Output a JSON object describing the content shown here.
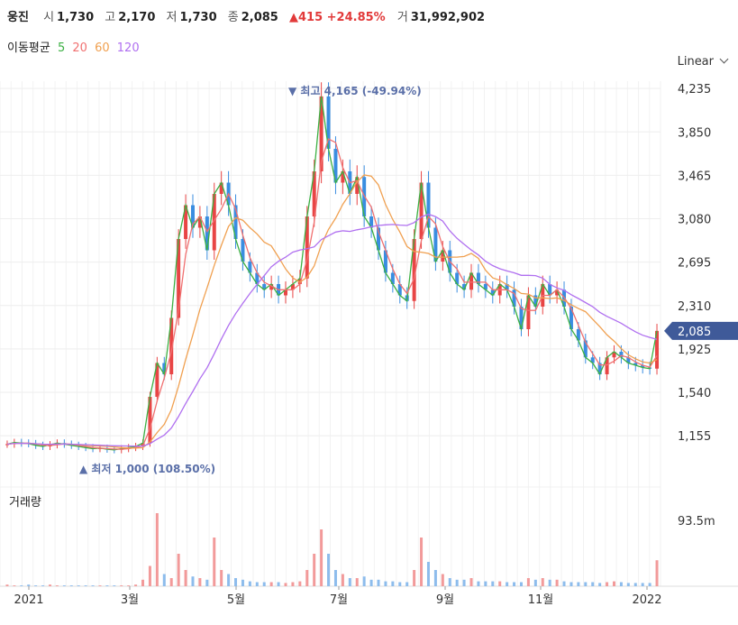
{
  "header": {
    "name": "웅진",
    "open_label": "시",
    "open": "1,730",
    "high_label": "고",
    "high": "2,170",
    "low_label": "저",
    "low": "1,730",
    "close_label": "종",
    "close": "2,085",
    "change": "▲415 +24.85%",
    "volume_label": "거",
    "volume": "31,992,902"
  },
  "ma_legend": {
    "title": "이동평균",
    "periods": [
      "5",
      "20",
      "60",
      "120"
    ],
    "colors": [
      "#3cb043",
      "#f07070",
      "#f0a050",
      "#b070f0"
    ]
  },
  "scale_mode": "Linear",
  "volume_title": "거래량",
  "chart_data": {
    "type": "candlestick",
    "price_axis": {
      "ticks": [
        "4,235",
        "3,850",
        "3,465",
        "3,080",
        "2,695",
        "2,310",
        "1,925",
        "1,540",
        "1,155"
      ],
      "min": 900,
      "max": 4300
    },
    "volume_axis": {
      "ticks": [
        "93.5m"
      ]
    },
    "x_ticks": [
      "2021",
      "3월",
      "5월",
      "7월",
      "9월",
      "11월",
      "2022"
    ],
    "current_price": {
      "label": "2,085",
      "value": 2085
    },
    "annotations": [
      {
        "text": "▼ 최고 4,165 (-49.94%)",
        "value": 4165
      },
      {
        "text": "▲ 최저 1,000 (108.50%)",
        "value": 1000
      }
    ],
    "close_series": [
      1080,
      1095,
      1090,
      1085,
      1070,
      1060,
      1075,
      1090,
      1080,
      1070,
      1060,
      1050,
      1040,
      1045,
      1035,
      1030,
      1040,
      1050,
      1060,
      1090,
      1500,
      1800,
      1700,
      2200,
      2900,
      3200,
      3000,
      3100,
      2800,
      3300,
      3400,
      3200,
      2900,
      2700,
      2600,
      2500,
      2450,
      2500,
      2400,
      2450,
      2500,
      2550,
      3100,
      3500,
      4165,
      3700,
      3400,
      3500,
      3300,
      3450,
      3100,
      3000,
      2800,
      2600,
      2500,
      2400,
      2350,
      2900,
      3400,
      3000,
      2700,
      2800,
      2600,
      2500,
      2450,
      2600,
      2500,
      2450,
      2400,
      2500,
      2450,
      2300,
      2100,
      2400,
      2300,
      2500,
      2400,
      2450,
      2300,
      2100,
      2000,
      1850,
      1800,
      1700,
      1850,
      1900,
      1850,
      1800,
      1780,
      1760,
      1750,
      2085
    ],
    "volume_series_m": [
      2,
      1,
      1,
      2,
      1,
      1,
      2,
      1,
      1,
      1,
      1,
      1,
      1,
      1,
      1,
      1,
      1,
      1,
      2,
      8,
      25,
      90,
      15,
      10,
      40,
      20,
      12,
      10,
      8,
      60,
      20,
      15,
      10,
      8,
      6,
      5,
      5,
      5,
      5,
      4,
      5,
      6,
      20,
      40,
      70,
      40,
      20,
      15,
      10,
      10,
      12,
      8,
      8,
      6,
      6,
      5,
      5,
      20,
      60,
      30,
      20,
      15,
      10,
      8,
      8,
      10,
      6,
      6,
      6,
      6,
      5,
      5,
      5,
      10,
      8,
      10,
      8,
      8,
      6,
      5,
      5,
      5,
      5,
      4,
      5,
      6,
      5,
      4,
      4,
      4,
      4,
      32
    ]
  }
}
